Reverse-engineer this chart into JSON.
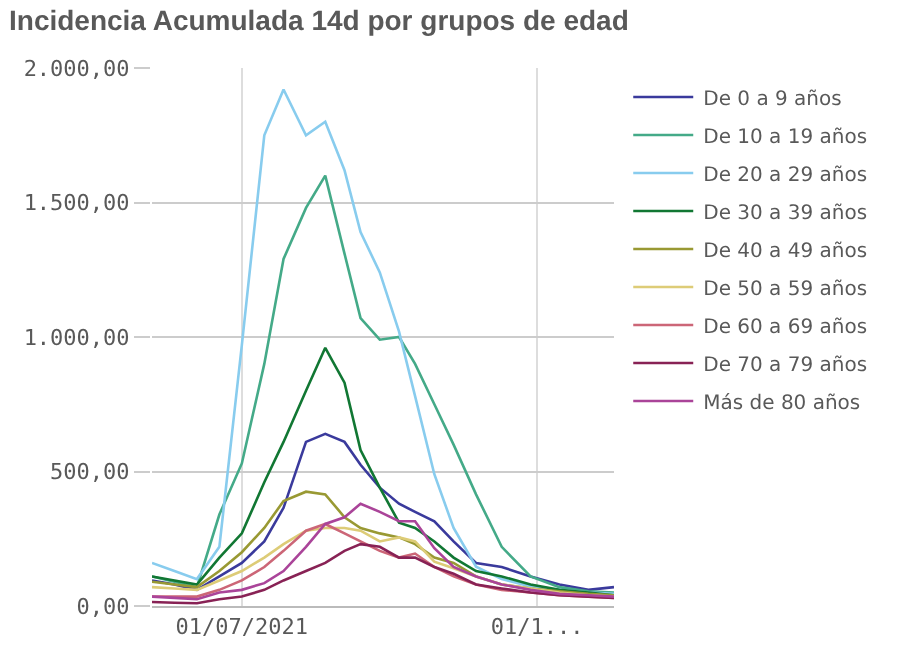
{
  "chart_data": {
    "type": "line",
    "title": "Incidencia Acumulada 14d por grupos de edad",
    "x": [
      "2021-06-03",
      "2021-06-10",
      "2021-06-17",
      "2021-06-24",
      "2021-07-01",
      "2021-07-08",
      "2021-07-14",
      "2021-07-21",
      "2021-07-27",
      "2021-08-02",
      "2021-08-07",
      "2021-08-13",
      "2021-08-19",
      "2021-08-24",
      "2021-08-30",
      "2021-09-05",
      "2021-09-12",
      "2021-09-20",
      "2021-09-29",
      "2021-10-08",
      "2021-10-17",
      "2021-10-25"
    ],
    "series": [
      {
        "name": "De 0 a 9 años",
        "color": "#3a3a9c",
        "values": [
          95,
          80,
          60,
          110,
          160,
          240,
          365,
          610,
          640,
          610,
          525,
          440,
          380,
          350,
          315,
          240,
          160,
          145,
          110,
          80,
          60,
          70
        ]
      },
      {
        "name": "De 10 a 19 años",
        "color": "#44aa88",
        "values": [
          110,
          90,
          70,
          340,
          530,
          900,
          1290,
          1480,
          1600,
          1310,
          1070,
          990,
          1000,
          900,
          750,
          600,
          415,
          220,
          110,
          70,
          55,
          50
        ]
      },
      {
        "name": "De 20 a 29 años",
        "color": "#88ccee",
        "values": [
          160,
          130,
          100,
          220,
          970,
          1750,
          1920,
          1750,
          1800,
          1620,
          1390,
          1240,
          1020,
          780,
          490,
          290,
          146,
          100,
          73,
          60,
          50,
          45
        ]
      },
      {
        "name": "De 30 a 39 años",
        "color": "#117733",
        "values": [
          110,
          95,
          80,
          180,
          270,
          460,
          610,
          800,
          960,
          830,
          580,
          440,
          310,
          290,
          240,
          180,
          130,
          110,
          80,
          60,
          50,
          40
        ]
      },
      {
        "name": "De 40 a 49 años",
        "color": "#999933",
        "values": [
          90,
          80,
          70,
          130,
          200,
          290,
          390,
          425,
          415,
          330,
          290,
          270,
          255,
          230,
          180,
          160,
          110,
          80,
          65,
          55,
          45,
          40
        ]
      },
      {
        "name": "De 50 a 59 años",
        "color": "#ddcc77",
        "values": [
          70,
          65,
          60,
          95,
          130,
          180,
          230,
          280,
          290,
          290,
          280,
          240,
          255,
          240,
          165,
          140,
          110,
          80,
          65,
          50,
          40,
          35
        ]
      },
      {
        "name": "De 60 a 69 años",
        "color": "#cc6677",
        "values": [
          35,
          35,
          35,
          60,
          95,
          145,
          205,
          280,
          305,
          270,
          240,
          205,
          180,
          195,
          145,
          110,
          80,
          60,
          50,
          40,
          35,
          30
        ]
      },
      {
        "name": "De 70 a 79 años",
        "color": "#882255",
        "values": [
          15,
          12,
          10,
          25,
          35,
          60,
          95,
          130,
          160,
          205,
          230,
          220,
          180,
          180,
          145,
          120,
          80,
          65,
          50,
          40,
          35,
          30
        ]
      },
      {
        "name": "Más de 80 años",
        "color": "#aa4499",
        "values": [
          35,
          30,
          25,
          50,
          60,
          85,
          130,
          220,
          305,
          330,
          380,
          350,
          315,
          315,
          215,
          145,
          110,
          80,
          60,
          45,
          40,
          35
        ]
      }
    ],
    "xlim": [
      "2021-06-03",
      "2021-10-25"
    ],
    "xticks": [
      {
        "value": "2021-07-01",
        "label": "01/07/2021"
      },
      {
        "value": "2021-10-01",
        "label": "01/1..."
      }
    ],
    "ylim": [
      0,
      2000
    ],
    "yticks": [
      {
        "value": 0,
        "label": "0,00"
      },
      {
        "value": 500,
        "label": "500,00"
      },
      {
        "value": 1000,
        "label": "1.000,00"
      },
      {
        "value": 1500,
        "label": "1.500,00"
      },
      {
        "value": 2000,
        "label": "2.000,00"
      }
    ],
    "grid": true,
    "legend": "right",
    "marker": "none",
    "line_style": "solid"
  }
}
